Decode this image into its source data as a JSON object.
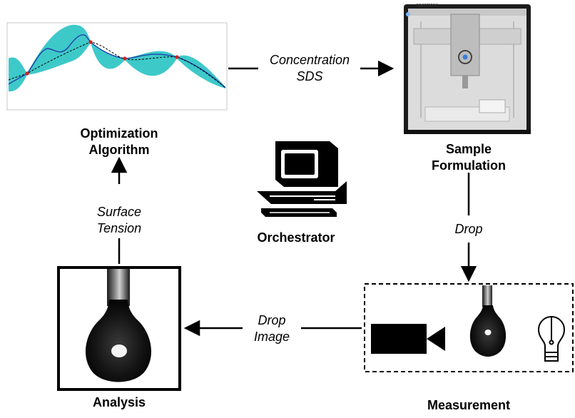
{
  "labels": {
    "optimization_line1": "Optimization",
    "optimization_line2": "Algorithm",
    "sample_line1": "Sample",
    "sample_line2": "Formulation",
    "orchestrator": "Orchestrator",
    "analysis": "Analysis",
    "measurement": "Measurement"
  },
  "edges": {
    "concentration_line1": "Concentration",
    "concentration_line2": "SDS",
    "drop": "Drop",
    "drop_image_line1": "Drop",
    "drop_image_line2": "Image",
    "surface_line1": "Surface",
    "surface_line2": "Tension"
  },
  "robot": {
    "brand": "opentrons"
  },
  "colors": {
    "band": "#3ec9c9",
    "mean_line": "#1f3fa8",
    "sample_point": "#d42020",
    "arrow": "#000000"
  },
  "icons": [
    "computer-icon",
    "camera-icon",
    "lightbulb-icon",
    "pendant-drop-icon",
    "liquid-handler-robot"
  ]
}
